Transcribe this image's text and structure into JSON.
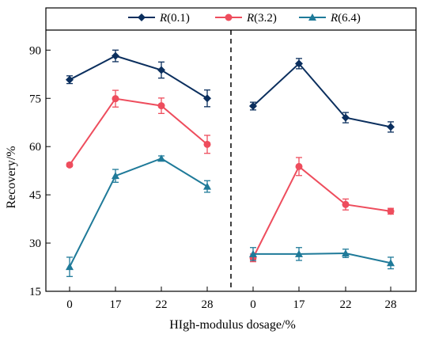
{
  "chart_data": {
    "type": "line",
    "xlabel": "HIgh-modulus dosage/%",
    "ylabel": "Recovery/%",
    "ylim": [
      15,
      95
    ],
    "yticks": [
      "15",
      "30",
      "45",
      "60",
      "75",
      "90"
    ],
    "categories": [
      "0",
      "17",
      "22",
      "28"
    ],
    "panels": 2,
    "grid": false,
    "legend_position": "top",
    "series": [
      {
        "name_prefix": "R",
        "name_suffix": "(0.1)",
        "color": "#0b2f5e",
        "marker": "diamond",
        "panels": [
          {
            "values": [
              80.8,
              88.2,
              83.8,
              75.0
            ],
            "errors": [
              1.2,
              1.8,
              2.5,
              2.6
            ]
          },
          {
            "values": [
              72.6,
              85.8,
              69.0,
              66.1
            ],
            "errors": [
              1.2,
              1.6,
              1.6,
              1.6
            ]
          }
        ]
      },
      {
        "name_prefix": "R",
        "name_suffix": "(3.2)",
        "color": "#ee4d5d",
        "marker": "circle",
        "panels": [
          {
            "values": [
              54.3,
              74.9,
              72.7,
              60.7
            ],
            "errors": [
              0.5,
              2.6,
              2.4,
              2.8
            ]
          },
          {
            "values": [
              25.4,
              53.8,
              42.0,
              39.9
            ],
            "errors": [
              1.2,
              2.8,
              1.7,
              0.9
            ]
          }
        ]
      },
      {
        "name_prefix": "R",
        "name_suffix": "(6.4)",
        "color": "#1f7a99",
        "marker": "triangle",
        "panels": [
          {
            "values": [
              22.6,
              50.9,
              56.3,
              47.6
            ],
            "errors": [
              3.0,
              2.0,
              0.8,
              1.8
            ]
          },
          {
            "values": [
              26.6,
              26.6,
              26.8,
              23.8
            ],
            "errors": [
              2.0,
              2.0,
              1.3,
              1.8
            ]
          }
        ]
      }
    ]
  }
}
